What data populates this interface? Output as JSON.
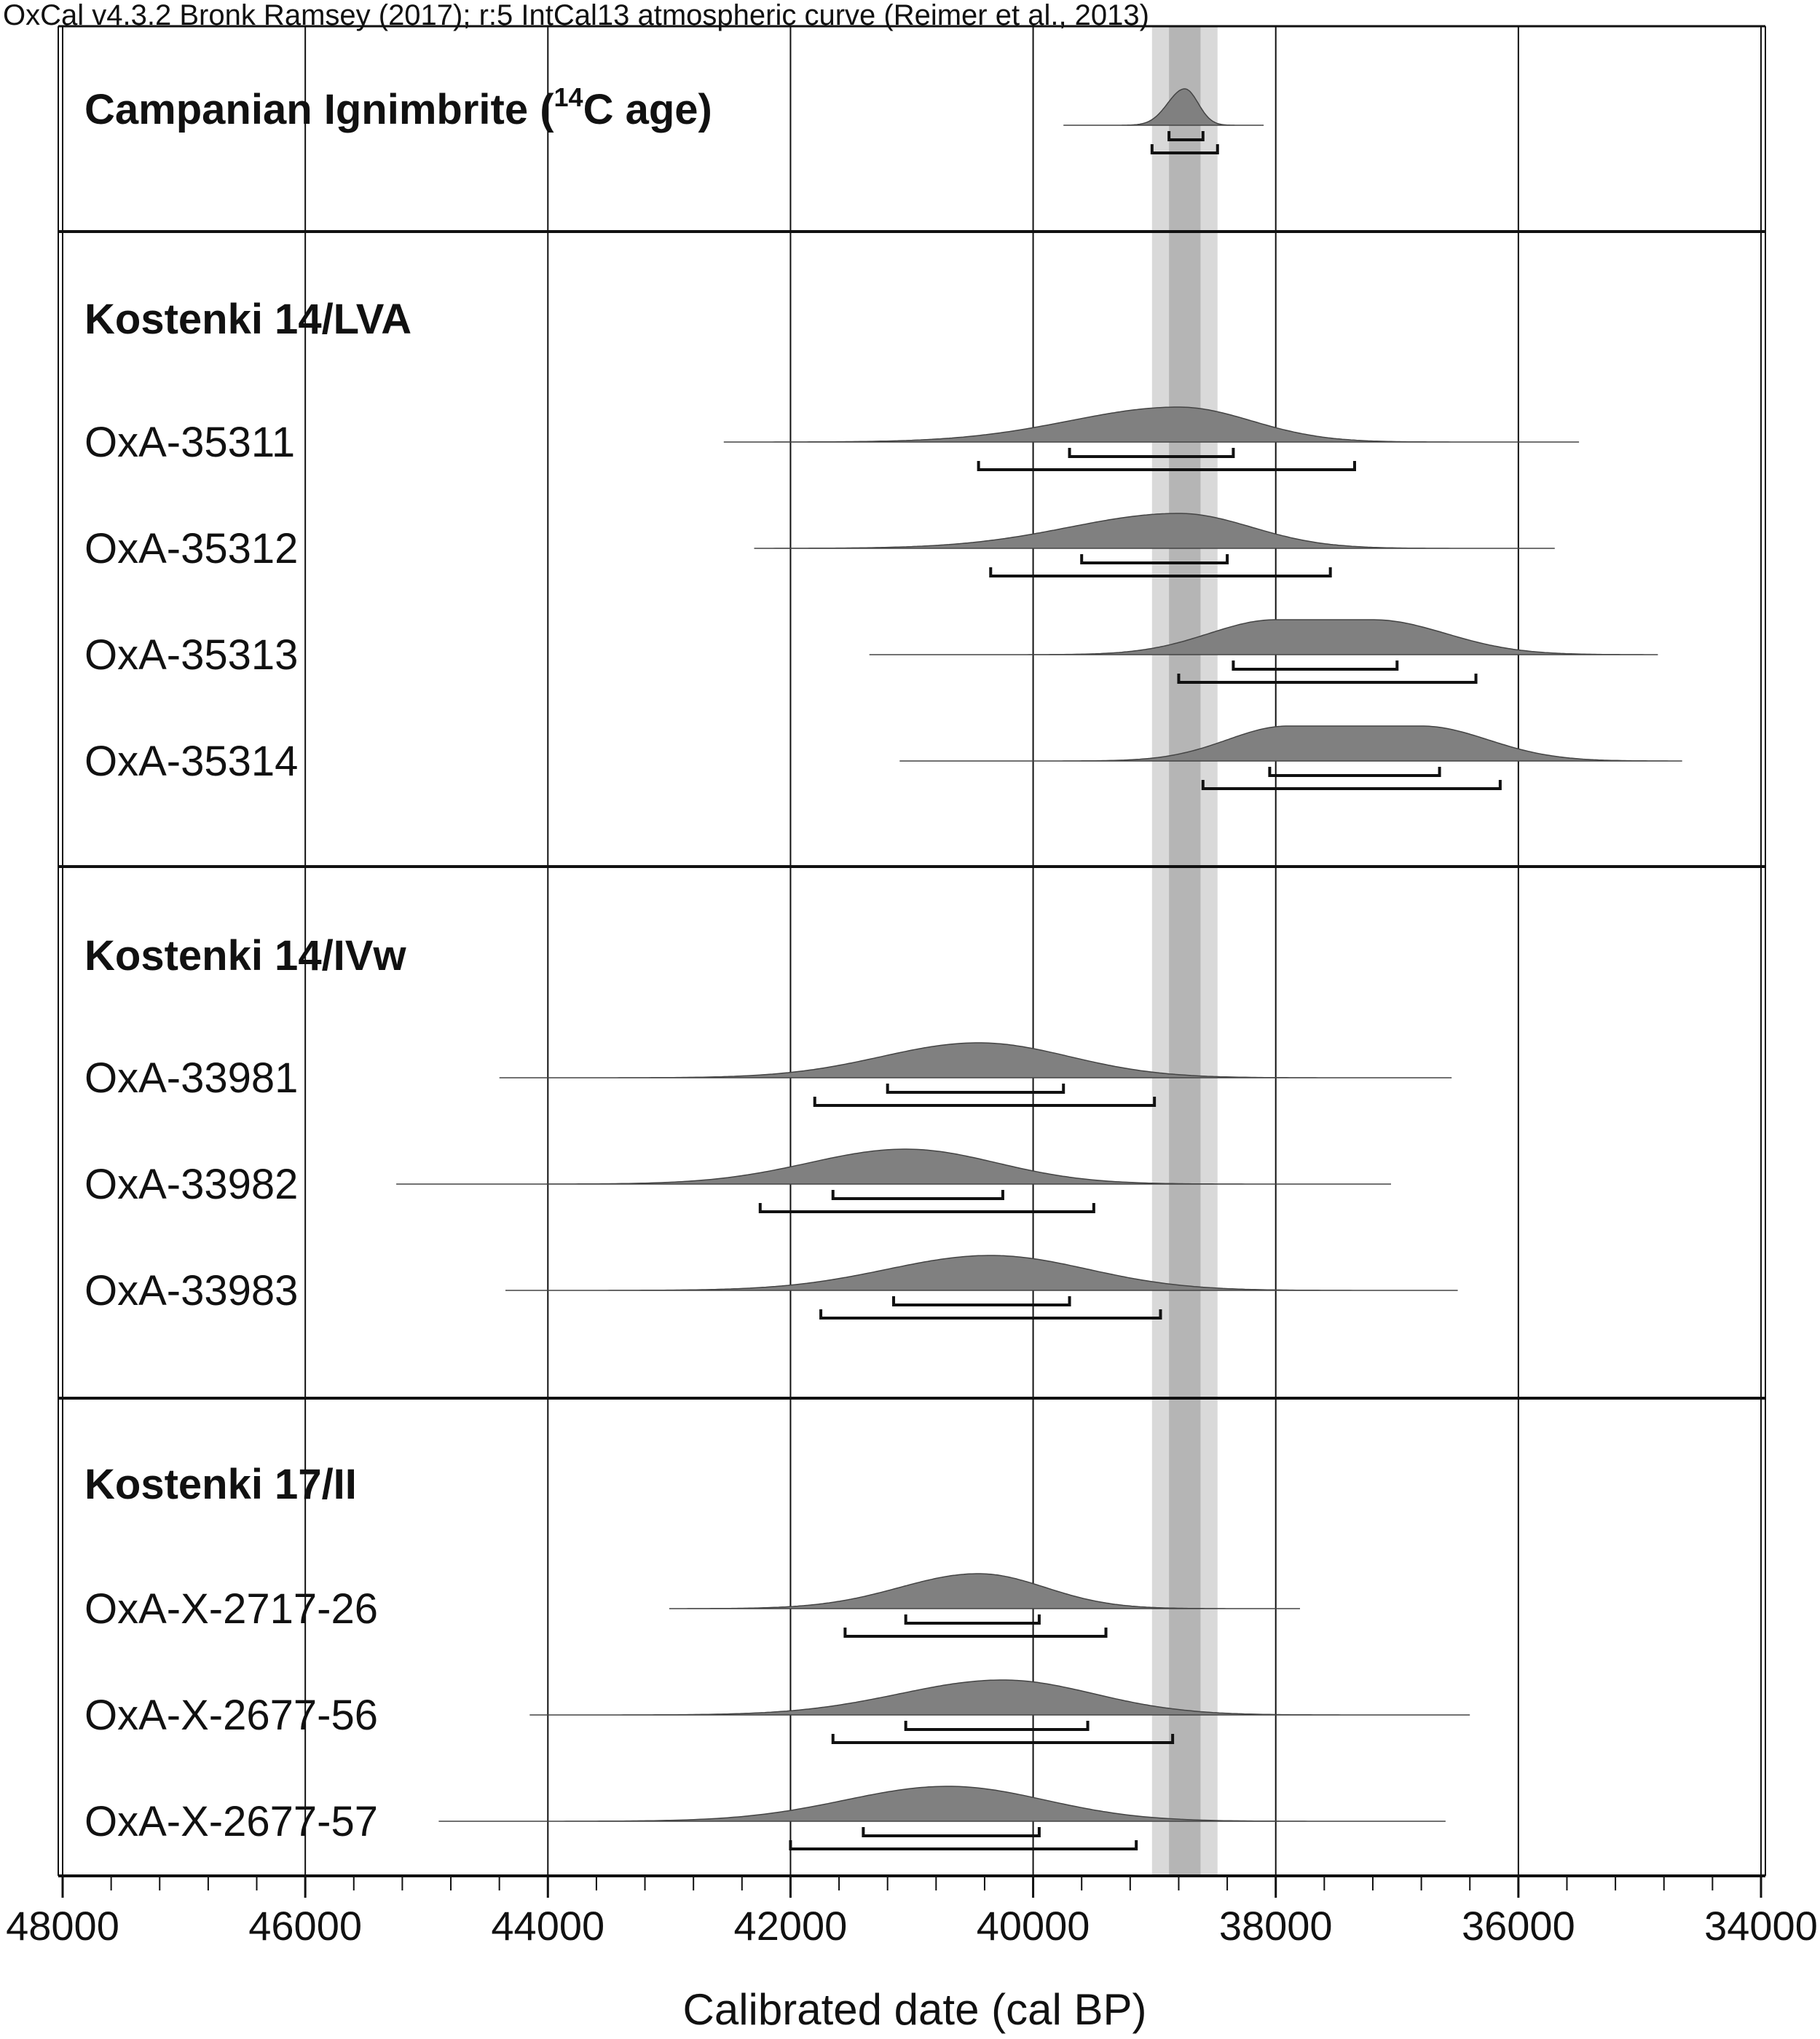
{
  "credit": "OxCal v4.3.2 Bronk Ramsey (2017); r:5 IntCal13 atmospheric curve (Reimer et al., 2013)",
  "chart_data": {
    "type": "range-plot",
    "xlabel": "Calibrated date (cal BP)",
    "xlim": [
      48000,
      34000
    ],
    "x_axis_reversed": true,
    "x_ticks": [
      48000,
      46000,
      44000,
      42000,
      40000,
      38000,
      36000,
      34000
    ],
    "x_tick_labels": [
      "48000",
      "46000",
      "44000",
      "42000",
      "40000",
      "38000",
      "36000",
      "34000"
    ],
    "minor_tick_step": 400,
    "vertical_gridlines": true,
    "highlight_band": {
      "outer": [
        39020,
        38480
      ],
      "inner": [
        38880,
        38620
      ]
    },
    "colors": {
      "distribution": "#808080",
      "band_outer": "#d9d9d9",
      "band_inner": "#b5b5b5",
      "line": "#111111"
    },
    "groups": [
      {
        "title_prefix": "Campanian Ignimbrite (",
        "title_sup": "14",
        "title_suffix": "C age)",
        "rows": [
          {
            "label": "",
            "peak": 38750,
            "spread_left": 140,
            "spread_right": 110,
            "tail": [
              39750,
              38100
            ],
            "range_68": [
              38880,
              38600
            ],
            "range_95": [
              39020,
              38480
            ]
          }
        ]
      },
      {
        "title": "Kostenki 14/LVA",
        "rows": [
          {
            "label": "OxA-35311",
            "peak": 38800,
            "spread_left": 900,
            "spread_right": 600,
            "tail": [
              42550,
              35500
            ],
            "range_68": [
              39700,
              38350
            ],
            "range_95": [
              40450,
              37350
            ]
          },
          {
            "label": "OxA-35312",
            "peak": 38800,
            "spread_left": 900,
            "spread_right": 600,
            "tail": [
              42300,
              35700
            ],
            "range_68": [
              39600,
              38400
            ],
            "range_95": [
              40350,
              37550
            ]
          },
          {
            "label": "OxA-35313",
            "peak": 37500,
            "plateau": [
              38000,
              37200
            ],
            "spread_left": 550,
            "spread_right": 600,
            "tail": [
              41350,
              34850
            ],
            "range_68": [
              38350,
              37000
            ],
            "range_95": [
              38800,
              36350
            ]
          },
          {
            "label": "OxA-35314",
            "peak": 37300,
            "plateau": [
              37900,
              36800
            ],
            "spread_left": 500,
            "spread_right": 550,
            "tail": [
              41100,
              34650
            ],
            "range_68": [
              38050,
              36650
            ],
            "range_95": [
              38600,
              36150
            ]
          }
        ]
      },
      {
        "title": "Kostenki 14/IVw",
        "rows": [
          {
            "label": "OxA-33981",
            "peak": 40450,
            "spread_left": 800,
            "spread_right": 750,
            "tail": [
              44400,
              36550
            ],
            "range_68": [
              41200,
              39750
            ],
            "range_95": [
              41800,
              39000
            ]
          },
          {
            "label": "OxA-33982",
            "peak": 41050,
            "spread_left": 800,
            "spread_right": 750,
            "tail": [
              45250,
              37050
            ],
            "range_68": [
              41650,
              40250
            ],
            "range_95": [
              42250,
              39500
            ]
          },
          {
            "label": "OxA-33983",
            "peak": 40350,
            "spread_left": 850,
            "spread_right": 800,
            "tail": [
              44350,
              36500
            ],
            "range_68": [
              41150,
              39700
            ],
            "range_95": [
              41750,
              38950
            ]
          }
        ]
      },
      {
        "title": "Kostenki 17/II",
        "rows": [
          {
            "label": "OxA-X-2717-26",
            "peak": 40450,
            "spread_left": 650,
            "spread_right": 550,
            "tail": [
              43000,
              37800
            ],
            "range_68": [
              41050,
              39950
            ],
            "range_95": [
              41550,
              39400
            ]
          },
          {
            "label": "OxA-X-2677-56",
            "peak": 40250,
            "spread_left": 850,
            "spread_right": 750,
            "tail": [
              44150,
              36400
            ],
            "range_68": [
              41050,
              39550
            ],
            "range_95": [
              41650,
              38850
            ]
          },
          {
            "label": "OxA-X-2677-57",
            "peak": 40700,
            "spread_left": 850,
            "spread_right": 800,
            "tail": [
              44900,
              36600
            ],
            "range_68": [
              41400,
              39950
            ],
            "range_95": [
              42000,
              39150
            ]
          }
        ]
      }
    ]
  }
}
